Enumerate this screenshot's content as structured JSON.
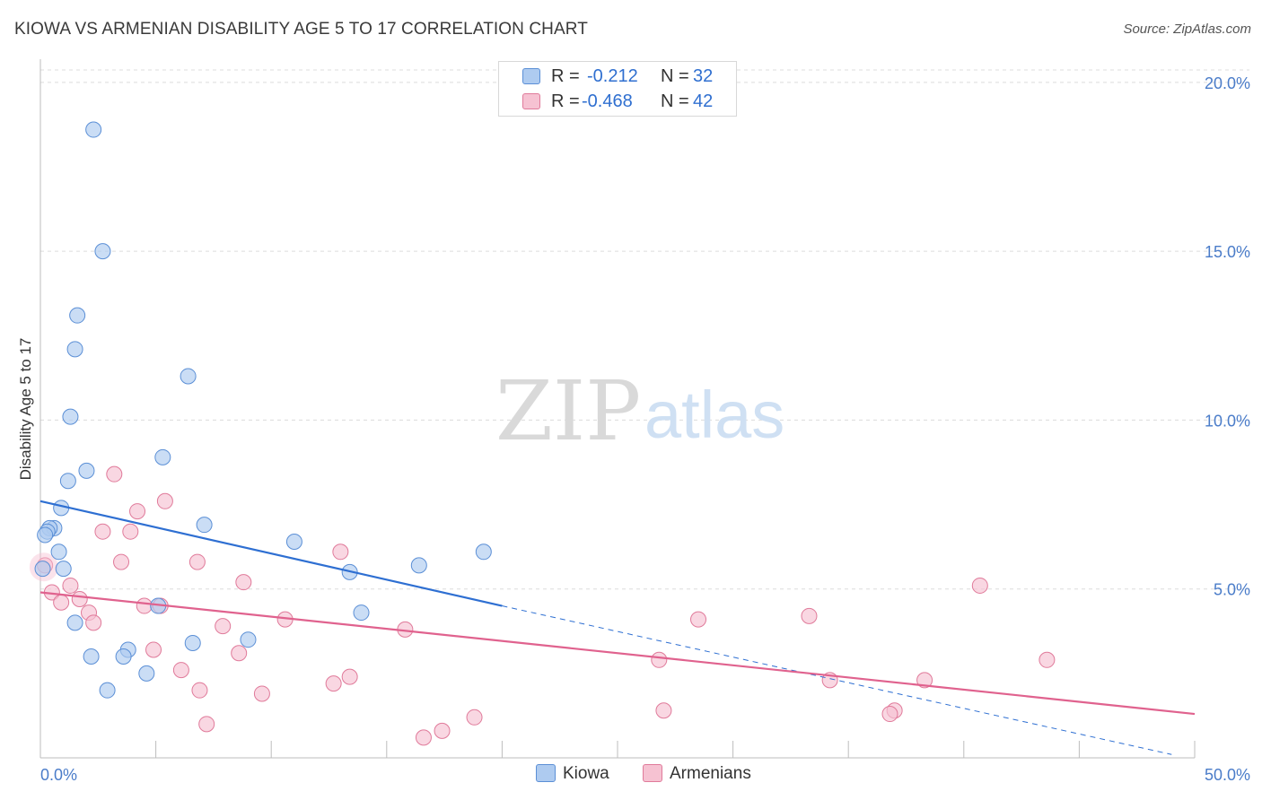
{
  "title": "KIOWA VS ARMENIAN DISABILITY AGE 5 TO 17 CORRELATION CHART",
  "source": "Source: ZipAtlas.com",
  "watermark": {
    "zip": "ZIP",
    "atlas": "atlas"
  },
  "stats": {
    "rows": [
      {
        "r_label": "R =",
        "r_value": "-0.212",
        "n_label": "N =",
        "n_value": "32",
        "color": "#aecbf0",
        "border": "#5b8fd6"
      },
      {
        "r_label": "R =",
        "r_value": "-0.468",
        "n_label": "N =",
        "n_value": "42",
        "color": "#f6c2d2",
        "border": "#e07a9a"
      }
    ]
  },
  "legend": {
    "kiowa": "Kiowa",
    "armenians": "Armenians"
  },
  "chart_data": {
    "type": "scatter",
    "title": "KIOWA VS ARMENIAN DISABILITY AGE 5 TO 17 CORRELATION CHART",
    "xlabel": "",
    "ylabel": "Disability Age 5 to 17",
    "xlim": [
      0,
      50
    ],
    "ylim": [
      0,
      20.5
    ],
    "x_tick_labels": {
      "0": "0.0%",
      "50": "50.0%"
    },
    "y_ticks": [
      5,
      10,
      15,
      20
    ],
    "y_tick_labels": [
      "5.0%",
      "10.0%",
      "15.0%",
      "20.0%"
    ],
    "grid": true,
    "series": [
      {
        "name": "Kiowa",
        "color": "#aecbf0",
        "stroke": "#5b8fd6",
        "line_color": "#2e6fd2",
        "points": [
          [
            2.3,
            18.6
          ],
          [
            2.7,
            15.0
          ],
          [
            1.6,
            13.1
          ],
          [
            1.5,
            12.1
          ],
          [
            6.4,
            11.3
          ],
          [
            1.3,
            10.1
          ],
          [
            5.3,
            8.9
          ],
          [
            2.0,
            8.5
          ],
          [
            1.2,
            8.2
          ],
          [
            0.9,
            7.4
          ],
          [
            0.6,
            6.8
          ],
          [
            0.4,
            6.8
          ],
          [
            0.3,
            6.7
          ],
          [
            0.2,
            6.6
          ],
          [
            7.1,
            6.9
          ],
          [
            0.8,
            6.1
          ],
          [
            11.0,
            6.4
          ],
          [
            19.2,
            6.1
          ],
          [
            16.4,
            5.7
          ],
          [
            13.4,
            5.5
          ],
          [
            1.0,
            5.6
          ],
          [
            0.1,
            5.6
          ],
          [
            5.1,
            4.5
          ],
          [
            13.9,
            4.3
          ],
          [
            1.5,
            4.0
          ],
          [
            9.0,
            3.5
          ],
          [
            6.6,
            3.4
          ],
          [
            3.8,
            3.2
          ],
          [
            2.2,
            3.0
          ],
          [
            3.6,
            3.0
          ],
          [
            4.6,
            2.5
          ],
          [
            2.9,
            2.0
          ]
        ],
        "trend": {
          "x0": 0,
          "y0": 7.6,
          "x1": 20,
          "y1": 4.5,
          "dashed_to_x": 49,
          "dashed_to_y": 0.1
        }
      },
      {
        "name": "Armenians",
        "color": "#f6c2d2",
        "stroke": "#e07a9a",
        "line_color": "#e0628e",
        "points": [
          [
            0.2,
            5.7
          ],
          [
            3.2,
            8.4
          ],
          [
            5.4,
            7.6
          ],
          [
            4.2,
            7.3
          ],
          [
            2.7,
            6.7
          ],
          [
            3.9,
            6.7
          ],
          [
            13.0,
            6.1
          ],
          [
            3.5,
            5.8
          ],
          [
            6.8,
            5.8
          ],
          [
            8.8,
            5.2
          ],
          [
            1.3,
            5.1
          ],
          [
            0.5,
            4.9
          ],
          [
            1.7,
            4.7
          ],
          [
            0.9,
            4.6
          ],
          [
            4.5,
            4.5
          ],
          [
            5.2,
            4.5
          ],
          [
            2.1,
            4.3
          ],
          [
            2.3,
            4.0
          ],
          [
            10.6,
            4.1
          ],
          [
            7.9,
            3.9
          ],
          [
            15.8,
            3.8
          ],
          [
            28.5,
            4.1
          ],
          [
            33.3,
            4.2
          ],
          [
            40.7,
            5.1
          ],
          [
            4.9,
            3.2
          ],
          [
            8.6,
            3.1
          ],
          [
            26.8,
            2.9
          ],
          [
            43.6,
            2.9
          ],
          [
            6.1,
            2.6
          ],
          [
            13.4,
            2.4
          ],
          [
            12.7,
            2.2
          ],
          [
            34.2,
            2.3
          ],
          [
            38.3,
            2.3
          ],
          [
            6.9,
            2.0
          ],
          [
            9.6,
            1.9
          ],
          [
            27.0,
            1.4
          ],
          [
            37.0,
            1.4
          ],
          [
            36.8,
            1.3
          ],
          [
            18.8,
            1.2
          ],
          [
            7.2,
            1.0
          ],
          [
            17.4,
            0.8
          ],
          [
            16.6,
            0.6
          ]
        ],
        "trend": {
          "x0": 0,
          "y0": 4.9,
          "x1": 50,
          "y1": 1.3
        }
      }
    ]
  }
}
